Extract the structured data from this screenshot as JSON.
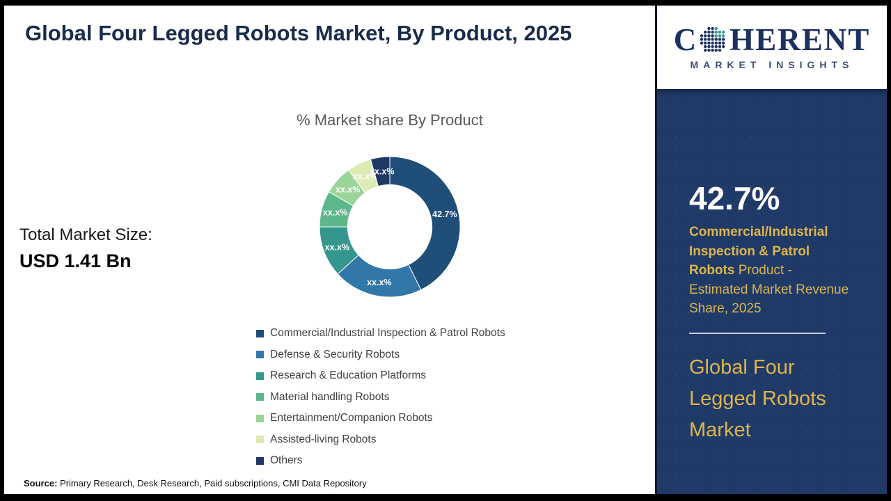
{
  "header": {
    "title": "Global Four Legged Robots Market, By Product, 2025"
  },
  "chart_data": {
    "type": "donut",
    "title": "% Market share By Product",
    "categories": [
      "Commercial/Industrial Inspection & Patrol Robots",
      "Defense & Security Robots",
      "Research & Education Platforms",
      "Material handling Robots",
      "Entertainment/Companion Robots",
      "Assisted-living Robots",
      "Others"
    ],
    "values": [
      42.7,
      20.6,
      11.7,
      8.3,
      6.7,
      5.6,
      4.4
    ],
    "data_labels": [
      "42.7%",
      "xx.x%",
      "xx.x%",
      "xx.x%",
      "xx.x%",
      "xx.x%",
      "xx.x%"
    ],
    "colors": [
      "#1F4E79",
      "#3178A9",
      "#35968E",
      "#5CB88A",
      "#9BD49A",
      "#DCEBB3",
      "#1F3864"
    ],
    "inner_radius_ratio": 0.6,
    "legend_position": "bottom-left"
  },
  "total_market": {
    "label": "Total Market Size:",
    "value": "USD 1.41 Bn"
  },
  "source": {
    "label": "Source:",
    "text": "Primary Research, Desk Research, Paid subscriptions, CMI Data Repository"
  },
  "sidebar": {
    "background_color": "#203A68",
    "accent_color": "#DCB54D",
    "stat_value": "42.7%",
    "stat_category": "Commercial/Industrial Inspection & Patrol Robots",
    "stat_description": "Product - Estimated Market Revenue Share, 2025",
    "market_name": "Global Four Legged Robots Market"
  },
  "logo": {
    "text_before": "C",
    "text_after": "HERENT",
    "subtitle": "MARKET INSIGHTS"
  }
}
